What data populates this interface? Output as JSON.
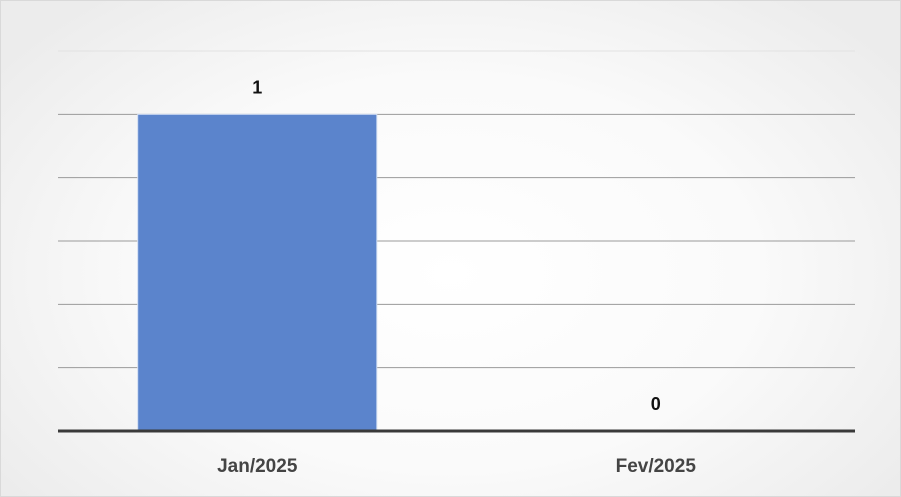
{
  "chart_data": {
    "type": "bar",
    "title": "",
    "xlabel": "",
    "ylabel": "",
    "categories": [
      "Jan/2025",
      "Fev/2025"
    ],
    "series": [
      {
        "values": [
          1,
          0
        ],
        "color": "#5b84cc"
      }
    ],
    "data_labels": [
      "1",
      "0"
    ],
    "ylim": [
      0,
      1.2
    ],
    "gridlines": true,
    "y_tick_labels_visible": false,
    "legend": "none"
  }
}
